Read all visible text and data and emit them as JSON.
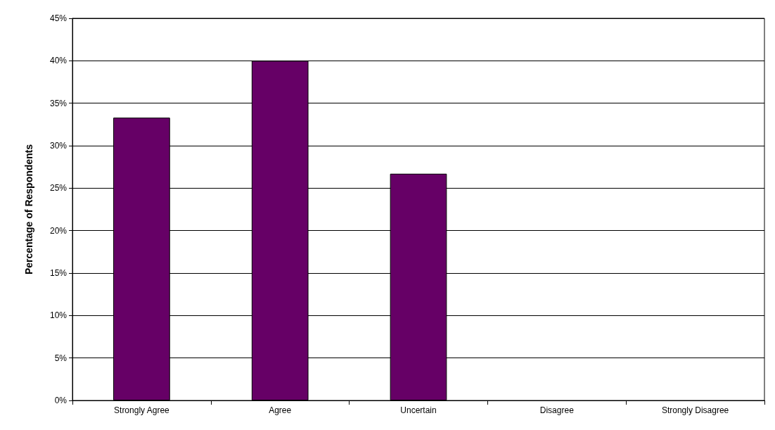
{
  "chart_data": {
    "type": "bar",
    "ylabel": "Percentage of Respondents",
    "categories": [
      "Strongly Agree",
      "Agree",
      "Uncertain",
      "Disagree",
      "Strongly Disagree"
    ],
    "values": [
      33.3,
      40,
      26.7,
      0,
      0
    ],
    "color": "#660066",
    "ylim": [
      0,
      45
    ],
    "yticks": [
      {
        "value": 0,
        "label": "0%"
      },
      {
        "value": 5,
        "label": "5%"
      },
      {
        "value": 10,
        "label": "10%"
      },
      {
        "value": 15,
        "label": "15%"
      },
      {
        "value": 20,
        "label": "20%"
      },
      {
        "value": 25,
        "label": "25%"
      },
      {
        "value": 30,
        "label": "30%"
      },
      {
        "value": 35,
        "label": "35%"
      },
      {
        "value": 40,
        "label": "40%"
      },
      {
        "value": 45,
        "label": "45%"
      }
    ],
    "grid": "y"
  }
}
